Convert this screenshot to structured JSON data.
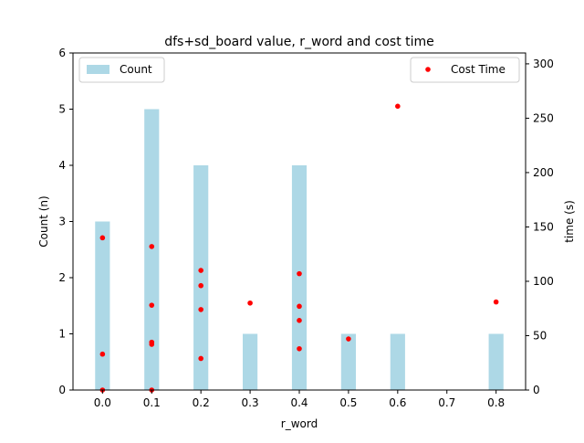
{
  "chart_data": {
    "type": "bar",
    "title": "dfs+sd_board value, r_word and cost time",
    "xlabel": "r_word",
    "ylabel_left": "Count (n)",
    "ylabel_right": "time (s)",
    "xlim": [
      -0.06,
      0.86
    ],
    "ylim_left": [
      0,
      6
    ],
    "ylim_right": [
      0,
      310
    ],
    "xticks": [
      "0.0",
      "0.1",
      "0.2",
      "0.3",
      "0.4",
      "0.5",
      "0.6",
      "0.7",
      "0.8"
    ],
    "yticks_left": [
      "0",
      "1",
      "2",
      "3",
      "4",
      "5",
      "6"
    ],
    "yticks_right": [
      "0",
      "50",
      "100",
      "150",
      "200",
      "250",
      "300"
    ],
    "bar_width": 0.03,
    "series": [
      {
        "name": "Count",
        "type": "bar",
        "axis": "left",
        "color": "#add8e6",
        "points": [
          {
            "x": 0.0,
            "y": 3
          },
          {
            "x": 0.1,
            "y": 5
          },
          {
            "x": 0.2,
            "y": 4
          },
          {
            "x": 0.3,
            "y": 1
          },
          {
            "x": 0.4,
            "y": 4
          },
          {
            "x": 0.5,
            "y": 1
          },
          {
            "x": 0.6,
            "y": 1
          },
          {
            "x": 0.8,
            "y": 1
          }
        ]
      },
      {
        "name": "Cost Time",
        "type": "scatter",
        "axis": "right",
        "color": "#ff0000",
        "points": [
          {
            "x": 0.0,
            "y": 140
          },
          {
            "x": 0.0,
            "y": 33
          },
          {
            "x": 0.0,
            "y": 0
          },
          {
            "x": 0.1,
            "y": 132
          },
          {
            "x": 0.1,
            "y": 78
          },
          {
            "x": 0.1,
            "y": 44
          },
          {
            "x": 0.1,
            "y": 42
          },
          {
            "x": 0.1,
            "y": 0
          },
          {
            "x": 0.2,
            "y": 110
          },
          {
            "x": 0.2,
            "y": 96
          },
          {
            "x": 0.2,
            "y": 74
          },
          {
            "x": 0.2,
            "y": 29
          },
          {
            "x": 0.3,
            "y": 80
          },
          {
            "x": 0.4,
            "y": 107
          },
          {
            "x": 0.4,
            "y": 77
          },
          {
            "x": 0.4,
            "y": 64
          },
          {
            "x": 0.4,
            "y": 38
          },
          {
            "x": 0.5,
            "y": 47
          },
          {
            "x": 0.6,
            "y": 261
          },
          {
            "x": 0.8,
            "y": 81
          }
        ]
      }
    ],
    "legend_left_position": "upper-left",
    "legend_right_position": "upper-right",
    "grid": false
  }
}
